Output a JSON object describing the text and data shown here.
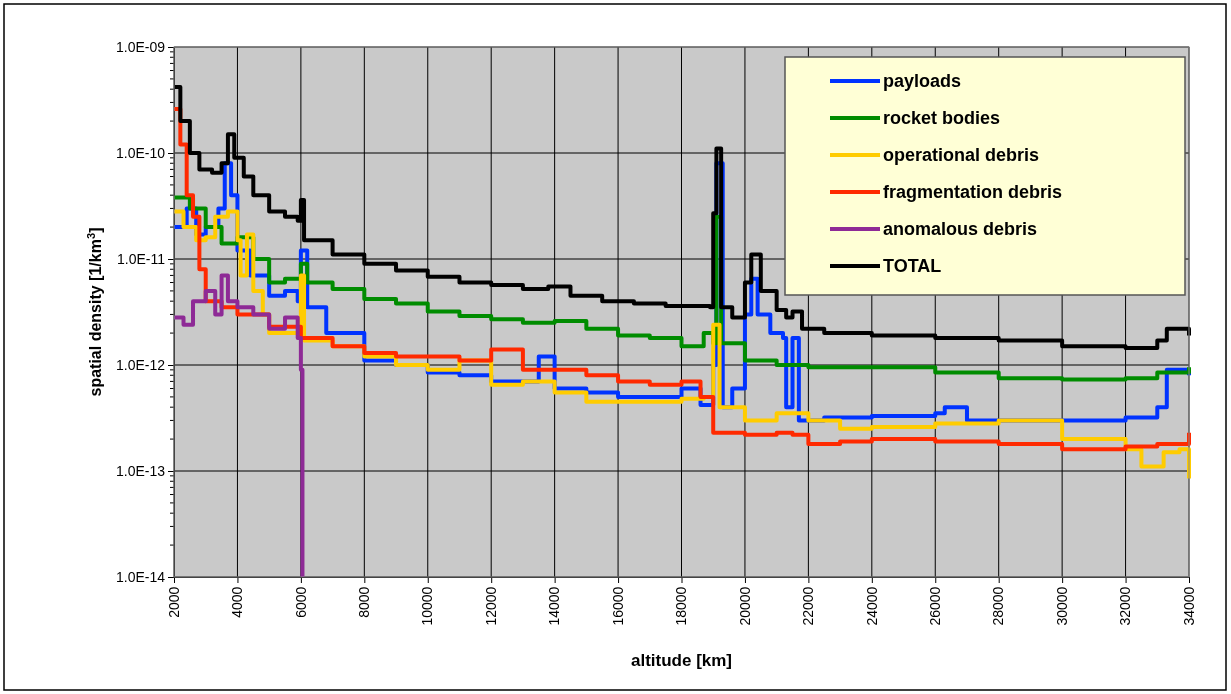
{
  "chart_data": {
    "type": "step",
    "xlabel": "altitude [km]",
    "ylabel": "spatial density [1/km$^{3}$]",
    "log": true,
    "grid": true,
    "legend": "top right",
    "xlim": [
      2000,
      34000
    ],
    "xticks": [
      2000,
      4000,
      6000,
      8000,
      10000,
      12000,
      14000,
      16000,
      18000,
      20000,
      22000,
      24000,
      26000,
      28000,
      30000,
      32000,
      34000
    ],
    "ylim": [
      1e-14,
      1e-09
    ],
    "yticks": [
      {
        "value": 1e-14,
        "label": "1.0E-14"
      },
      {
        "value": 1e-13,
        "label": "1.0E-13"
      },
      {
        "value": 1e-12,
        "label": "1.0E-12"
      },
      {
        "value": 1e-11,
        "label": "1.0E-11"
      },
      {
        "value": 1e-10,
        "label": "1.0E-10"
      },
      {
        "value": 1e-09,
        "label": "1.0E-09"
      }
    ],
    "series": [
      {
        "name": "payloads",
        "color": "#0033ff",
        "x": [
          2000,
          2400,
          2700,
          3000,
          3400,
          3600,
          3800,
          4000,
          4400,
          5000,
          5500,
          5900,
          6000,
          6200,
          6800,
          7500,
          8000,
          9000,
          10000,
          11000,
          12000,
          13000,
          13500,
          14000,
          15000,
          16000,
          17000,
          18000,
          18600,
          19000,
          19100,
          19300,
          19600,
          20000,
          20200,
          20400,
          20800,
          21200,
          21300,
          21500,
          21700,
          22500,
          24000,
          26000,
          26300,
          27000,
          28000,
          30000,
          32000,
          33000,
          33300,
          34000
        ],
        "values": [
          2e-11,
          3e-11,
          1.7e-11,
          2e-11,
          3e-11,
          8e-11,
          4e-11,
          1.2e-11,
          7e-12,
          4.5e-12,
          5e-12,
          4e-12,
          1.2e-11,
          3.5e-12,
          2e-12,
          2e-12,
          1.1e-12,
          1e-12,
          8.5e-13,
          8e-13,
          7e-13,
          7e-13,
          1.2e-12,
          6e-13,
          5.5e-13,
          5e-13,
          5e-13,
          6e-13,
          4.2e-13,
          1e-12,
          8e-11,
          4e-13,
          6e-13,
          3e-12,
          6.5e-12,
          3e-12,
          2e-12,
          1.8e-12,
          4e-13,
          1.8e-12,
          3e-13,
          3.2e-13,
          3.3e-13,
          3.5e-13,
          4e-13,
          3e-13,
          3e-13,
          3e-13,
          3.2e-13,
          4e-13,
          9e-13,
          8e-13
        ]
      },
      {
        "name": "rocket bodies",
        "color": "#008c00",
        "x": [
          2000,
          2500,
          3000,
          3500,
          4000,
          4500,
          5000,
          5500,
          6000,
          6200,
          7000,
          8000,
          9000,
          10000,
          11000,
          12000,
          13000,
          14000,
          15000,
          16000,
          17000,
          18000,
          18700,
          19000,
          19100,
          19250,
          20000,
          21000,
          22000,
          24000,
          26000,
          28000,
          30000,
          32000,
          33000,
          34000
        ],
        "values": [
          3.8e-11,
          3e-11,
          2e-11,
          1.4e-11,
          1.6e-11,
          1e-11,
          6e-12,
          6.5e-12,
          9e-12,
          6e-12,
          5.2e-12,
          4.2e-12,
          3.8e-12,
          3.2e-12,
          2.9e-12,
          2.7e-12,
          2.5e-12,
          2.6e-12,
          2.2e-12,
          1.9e-12,
          1.8e-12,
          1.5e-12,
          2e-12,
          1.6e-12,
          2.5e-11,
          1.6e-12,
          1.1e-12,
          1e-12,
          9.5e-13,
          9.5e-13,
          8.5e-13,
          7.5e-13,
          7.3e-13,
          7.5e-13,
          8.5e-13,
          9.5e-13
        ]
      },
      {
        "name": "operational debris",
        "color": "#ffcc00",
        "x": [
          2000,
          2300,
          2700,
          3000,
          3300,
          3700,
          4000,
          4100,
          4300,
          4500,
          4800,
          5000,
          5800,
          6000,
          6100,
          7000,
          8000,
          9000,
          10000,
          11000,
          12000,
          13000,
          14000,
          15000,
          16000,
          17000,
          18000,
          18700,
          19000,
          19200,
          20000,
          21000,
          22000,
          23000,
          24000,
          26000,
          28000,
          29500,
          30000,
          31000,
          32000,
          32500,
          33200,
          33700,
          34000
        ],
        "values": [
          2.8e-11,
          2e-11,
          1.5e-11,
          1.6e-11,
          2.5e-11,
          2.8e-11,
          1.5e-11,
          7e-12,
          1.7e-11,
          5e-12,
          3e-12,
          2e-12,
          2e-12,
          7e-12,
          1.7e-12,
          1.5e-12,
          1.2e-12,
          1e-12,
          9e-13,
          1.1e-12,
          6.5e-13,
          7e-13,
          5.5e-13,
          4.5e-13,
          4.5e-13,
          4.5e-13,
          4.8e-13,
          5e-13,
          2.4e-12,
          4e-13,
          3e-13,
          3.5e-13,
          3e-13,
          2.5e-13,
          2.6e-13,
          2.8e-13,
          3e-13,
          3e-13,
          2e-13,
          2e-13,
          1.6e-13,
          1.1e-13,
          1.5e-13,
          1.6e-13,
          8.5e-14
        ]
      },
      {
        "name": "fragmentation debris",
        "color": "#ff2a00",
        "x": [
          2000,
          2200,
          2400,
          2600,
          2800,
          3000,
          3500,
          4000,
          5000,
          6000,
          7000,
          8000,
          9000,
          10000,
          11000,
          12000,
          13000,
          14000,
          15000,
          16000,
          17000,
          18000,
          18600,
          19000,
          20000,
          21000,
          21500,
          22000,
          23000,
          24000,
          26000,
          28000,
          30000,
          32000,
          33000,
          34000
        ],
        "values": [
          2.6e-10,
          1.2e-10,
          4e-11,
          2.5e-11,
          8e-12,
          4e-12,
          3.5e-12,
          3e-12,
          2.3e-12,
          1.8e-12,
          1.5e-12,
          1.3e-12,
          1.2e-12,
          1.2e-12,
          1.1e-12,
          1.4e-12,
          9e-13,
          9e-13,
          8e-13,
          7e-13,
          6.5e-13,
          7e-13,
          5e-13,
          2.3e-13,
          2.2e-13,
          2.3e-13,
          2.2e-13,
          1.8e-13,
          1.9e-13,
          2e-13,
          1.9e-13,
          1.8e-13,
          1.6e-13,
          1.7e-13,
          1.8e-13,
          2.3e-13
        ]
      },
      {
        "name": "anomalous debris",
        "color": "#8e2a96",
        "x": [
          2000,
          2300,
          2600,
          3000,
          3300,
          3500,
          3700,
          4000,
          4500,
          5000,
          5500,
          5900,
          6000,
          6050
        ],
        "values": [
          2.8e-12,
          2.4e-12,
          4e-12,
          5e-12,
          3e-12,
          7e-12,
          4e-12,
          3.5e-12,
          3e-12,
          2.2e-12,
          2.8e-12,
          1.8e-12,
          9e-13,
          1e-14
        ]
      },
      {
        "name": "TOTAL",
        "color": "#000000",
        "x": [
          2000,
          2200,
          2500,
          2800,
          3200,
          3500,
          3700,
          3900,
          4200,
          4500,
          5000,
          5500,
          5900,
          6000,
          6100,
          7000,
          8000,
          9000,
          10000,
          11000,
          12000,
          13000,
          13800,
          14500,
          15500,
          16500,
          17500,
          18500,
          18900,
          19000,
          19100,
          19250,
          19600,
          20000,
          20200,
          20500,
          21000,
          21300,
          21500,
          21800,
          22500,
          24000,
          26000,
          28000,
          30000,
          32000,
          33000,
          33300,
          34000
        ],
        "values": [
          4.2e-10,
          2e-10,
          1e-10,
          7e-11,
          6.5e-11,
          8e-11,
          1.5e-10,
          9e-11,
          6e-11,
          4e-11,
          2.8e-11,
          2.5e-11,
          2.3e-11,
          3.6e-11,
          1.5e-11,
          1.1e-11,
          9e-12,
          7.8e-12,
          6.8e-12,
          6e-12,
          5.7e-12,
          5.2e-12,
          5.5e-12,
          4.5e-12,
          4e-12,
          3.8e-12,
          3.6e-12,
          3.6e-12,
          3.5e-12,
          2.7e-11,
          1.1e-10,
          3.5e-12,
          2.8e-12,
          6e-12,
          1.1e-11,
          5e-12,
          3.3e-12,
          2.8e-12,
          3.2e-12,
          2.2e-12,
          2e-12,
          1.9e-12,
          1.8e-12,
          1.7e-12,
          1.5e-12,
          1.45e-12,
          1.7e-12,
          2.2e-12,
          1.9e-12
        ]
      }
    ]
  }
}
